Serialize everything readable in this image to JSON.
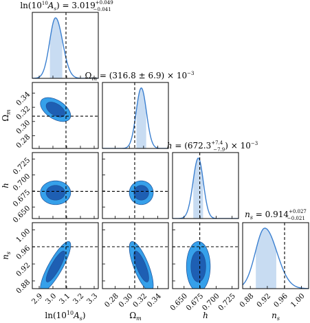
{
  "chart_data": {
    "type": "corner",
    "parameters": [
      {
        "key": "lnAs",
        "label": "ln(10¹⁰A_s)",
        "label_html": "ln(10<tspan baseline-shift='super' font-size='8'>10</tspan><tspan font-style='italic'>A</tspan><tspan baseline-shift='sub' font-size='8' font-style='italic'>s</tspan>)",
        "range": [
          2.85,
          3.33
        ],
        "ticks": [
          2.9,
          3.0,
          3.1,
          3.2,
          3.3
        ],
        "tick_labels": [
          "2.9",
          "3.0",
          "3.1",
          "3.2",
          "3.3"
        ],
        "mean": 3.019,
        "err_plus": 0.049,
        "err_minus": 0.041,
        "sigma_for_curve": 0.045,
        "truth": 3.095,
        "title": "ln(10¹⁰A_s) = 3.019 +0.049 −0.041"
      },
      {
        "key": "Om",
        "label": "Ω_m",
        "range": [
          0.262,
          0.355
        ],
        "ticks": [
          0.28,
          0.3,
          0.32,
          0.34
        ],
        "tick_labels": [
          "0.28",
          "0.30",
          "0.32",
          "0.34"
        ],
        "mean": 0.3168,
        "err_plus": 0.0069,
        "err_minus": 0.0069,
        "sigma_for_curve": 0.0069,
        "truth": 0.3075,
        "title": "Ω_m = (316.8 ± 6.9) × 10⁻³"
      },
      {
        "key": "h",
        "label": "h",
        "range": [
          0.632,
          0.735
        ],
        "ticks": [
          0.65,
          0.675,
          0.7,
          0.725
        ],
        "tick_labels": [
          "0.650",
          "0.675",
          "0.700",
          "0.725"
        ],
        "mean": 0.6723,
        "err_plus": 0.0074,
        "err_minus": 0.0079,
        "sigma_for_curve": 0.0076,
        "truth": 0.6745,
        "title": "h = (672.3 +7.4 −7.9) × 10⁻³"
      },
      {
        "key": "ns",
        "label": "n_s",
        "range": [
          0.862,
          1.017
        ],
        "ticks": [
          0.88,
          0.92,
          0.96,
          1.0
        ],
        "tick_labels": [
          "0.88",
          "0.92",
          "0.96",
          "1.00"
        ],
        "mean": 0.914,
        "err_plus": 0.027,
        "err_minus": 0.021,
        "sigma_for_curve": 0.024,
        "truth": 0.9605,
        "title": "n_s = 0.914 +0.027 −0.021"
      }
    ],
    "correlations": {
      "1-0": -0.5,
      "2-0": 0.0,
      "2-1": 0.0,
      "3-0": 0.85,
      "3-1": -0.75,
      "3-2": 0.0
    },
    "contour_levels": [
      "68%",
      "95%"
    ],
    "colors": {
      "line": "#3a7fd0",
      "fill_1d": "#c8dcf2",
      "contour_outer": "#36a0ea",
      "contour_inner": "#1e5fb3",
      "edge": "#1f4f96",
      "truth": "#000000"
    }
  }
}
